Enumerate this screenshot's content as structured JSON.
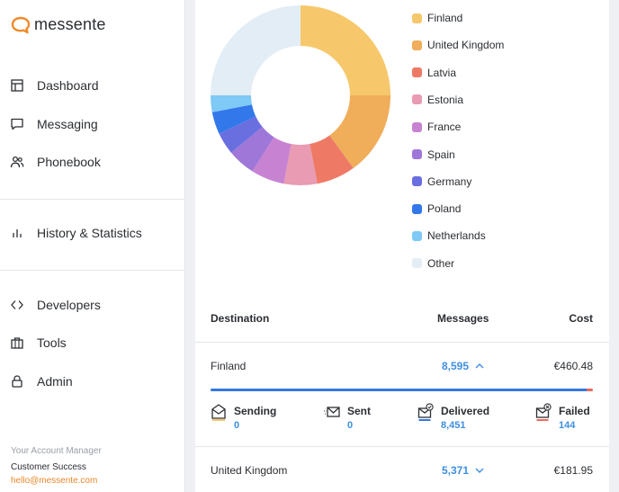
{
  "app": {
    "logo_text": "messente"
  },
  "sidebar": {
    "items": [
      {
        "label": "Dashboard",
        "icon": "dashboard-icon"
      },
      {
        "label": "Messaging",
        "icon": "chat-bubble-icon"
      },
      {
        "label": "Phonebook",
        "icon": "people-icon"
      },
      {
        "label": "History & Statistics",
        "icon": "bar-chart-icon"
      },
      {
        "label": "Developers",
        "icon": "code-icon"
      },
      {
        "label": "Tools",
        "icon": "briefcase-icon"
      },
      {
        "label": "Admin",
        "icon": "lock-icon"
      }
    ],
    "account_manager": {
      "title": "Your Account Manager",
      "name": "Customer Success",
      "email": "hello@messente.com"
    }
  },
  "chart_data": {
    "type": "pie",
    "style": "donut",
    "categories": [
      "Finland",
      "United Kingdom",
      "Latvia",
      "Estonia",
      "France",
      "Spain",
      "Germany",
      "Poland",
      "Netherlands",
      "Other"
    ],
    "values": [
      25,
      15,
      7,
      6,
      6,
      5,
      4,
      4,
      3,
      25
    ],
    "colors": [
      "#f6c86b",
      "#f0ad5a",
      "#ee7a66",
      "#e89bb2",
      "#c782d2",
      "#9f77d8",
      "#6a6fe0",
      "#3278eb",
      "#7ec9f5",
      "#e3edf5"
    ],
    "legend_position": "right"
  },
  "table": {
    "headers": {
      "destination": "Destination",
      "messages": "Messages",
      "cost": "Cost"
    },
    "rows": [
      {
        "country": "Finland",
        "messages": "8,595",
        "cost": "€460.48",
        "expanded": true,
        "delivered_fraction": 0.983,
        "failed_fraction": 0.017,
        "statuses": [
          {
            "label": "Sending",
            "value": "0",
            "icon": "envelope-sending-icon"
          },
          {
            "label": "Sent",
            "value": "0",
            "icon": "envelope-sent-icon"
          },
          {
            "label": "Delivered",
            "value": "8,451",
            "icon": "envelope-delivered-icon"
          },
          {
            "label": "Failed",
            "value": "144",
            "icon": "envelope-failed-icon"
          }
        ]
      },
      {
        "country": "United Kingdom",
        "messages": "5,371",
        "cost": "€181.95",
        "expanded": false
      }
    ]
  }
}
